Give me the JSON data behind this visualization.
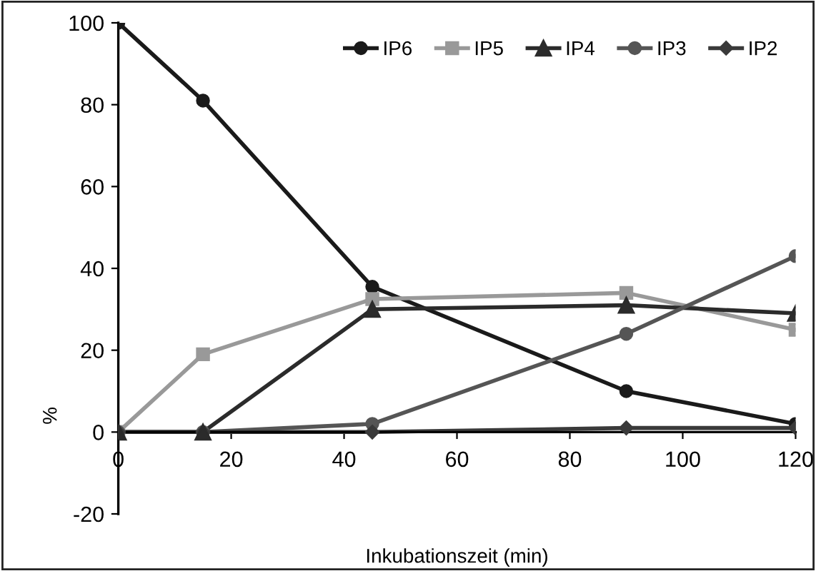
{
  "chart_data": {
    "type": "line",
    "xlabel": "Inkubationszeit (min)",
    "ylabel": "%",
    "x": [
      0,
      15,
      45,
      90,
      120
    ],
    "series": [
      {
        "name": "IP6",
        "color": "#1a1a1a",
        "marker": "circle",
        "values": [
          100,
          81,
          35.5,
          10,
          2
        ]
      },
      {
        "name": "IP5",
        "color": "#999999",
        "marker": "square",
        "values": [
          0,
          19,
          32.5,
          34,
          25
        ]
      },
      {
        "name": "IP4",
        "color": "#2b2b2b",
        "marker": "triangle",
        "values": [
          0,
          0,
          30,
          31,
          29
        ]
      },
      {
        "name": "IP3",
        "color": "#555555",
        "marker": "circle",
        "values": [
          0,
          0,
          2,
          24,
          43
        ]
      },
      {
        "name": "IP2",
        "color": "#3a3a3a",
        "marker": "diamond",
        "values": [
          0,
          0,
          0,
          1,
          1
        ]
      }
    ],
    "xlim": [
      0,
      120
    ],
    "xticks": [
      0,
      20,
      40,
      60,
      80,
      100,
      120
    ],
    "ylim": [
      -20,
      100
    ],
    "yticks": [
      -20,
      0,
      20,
      40,
      60,
      80,
      100
    ],
    "grid": false,
    "legend": "top right",
    "line_style": "solid"
  }
}
